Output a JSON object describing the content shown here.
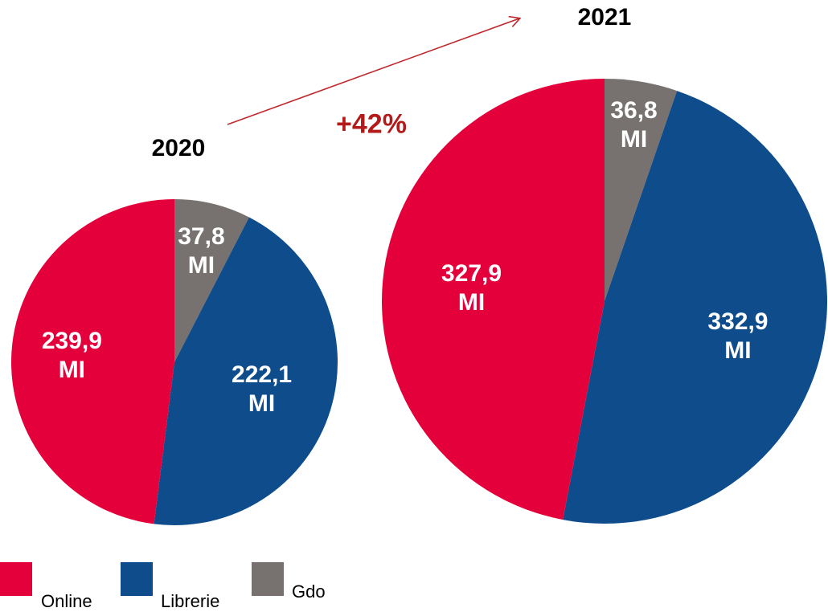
{
  "chart_data": [
    {
      "type": "pie",
      "title": "2020",
      "categories": [
        "Gdo",
        "Librerie",
        "Online"
      ],
      "values": [
        37.8,
        222.1,
        239.9
      ],
      "value_labels": [
        "37,8 MI",
        "222,1 MI",
        "239,9 MI"
      ],
      "colors": [
        "#77716f",
        "#0e4c8c",
        "#e4003a"
      ]
    },
    {
      "type": "pie",
      "title": "2021",
      "categories": [
        "Gdo",
        "Librerie",
        "Online"
      ],
      "values": [
        36.8,
        332.9,
        327.9
      ],
      "value_labels": [
        "36,8 MI",
        "332,9 MI",
        "327,9 MI"
      ],
      "colors": [
        "#77716f",
        "#0e4c8c",
        "#e4003a"
      ]
    }
  ],
  "annotation": "+42%"
}
